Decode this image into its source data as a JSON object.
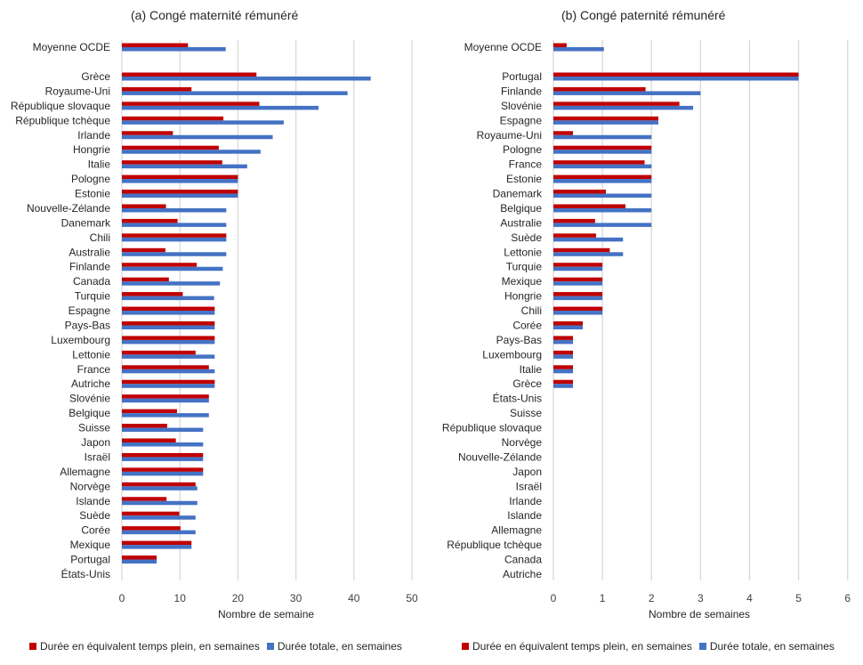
{
  "colors": {
    "fte": "#C00000",
    "total": "#4472C4",
    "grid": "#D9D9D9"
  },
  "chart_data": [
    {
      "type": "bar",
      "orientation": "horizontal",
      "title": "(a) Congé maternité rémunéré",
      "xlabel": "Nombre de semaine",
      "ylabel": "",
      "xlim": [
        0,
        50
      ],
      "xticks": [
        0,
        10,
        20,
        30,
        40,
        50
      ],
      "grid": true,
      "legend_position": "bottom",
      "categories": [
        "Moyenne OCDE",
        "",
        "Grèce",
        "Royaume-Uni",
        "République slovaque",
        "République tchèque",
        "Irlande",
        "Hongrie",
        "Italie",
        "Pologne",
        "Estonie",
        "Nouvelle-Zélande",
        "Danemark",
        "Chili",
        "Australie",
        "Finlande",
        "Canada",
        "Turquie",
        "Espagne",
        "Pays-Bas",
        "Luxembourg",
        "Lettonie",
        "France",
        "Autriche",
        "Slovénie",
        "Belgique",
        "Suisse",
        "Japon",
        "Israël",
        "Allemagne",
        "Norvège",
        "Islande",
        "Suède",
        "Corée",
        "Mexique",
        "Portugal",
        "États-Unis"
      ],
      "series": [
        {
          "name": "Durée en équivalent temps plein, en semaines",
          "color": "#C00000",
          "values": [
            11.4,
            null,
            23.2,
            12.0,
            23.7,
            17.5,
            8.8,
            16.7,
            17.3,
            20,
            20,
            7.6,
            9.6,
            18,
            7.5,
            12.9,
            8.1,
            10.5,
            16,
            16,
            16,
            12.7,
            15.0,
            16,
            15,
            9.5,
            7.8,
            9.3,
            14,
            14,
            12.7,
            7.7,
            9.9,
            10.1,
            12,
            6,
            0
          ]
        },
        {
          "name": "Durée totale, en semaines",
          "color": "#4472C4",
          "values": [
            17.9,
            null,
            42.9,
            38.9,
            33.9,
            27.9,
            26.0,
            23.9,
            21.6,
            20,
            20,
            18,
            18,
            18,
            18,
            17.4,
            16.9,
            15.9,
            16,
            16,
            16,
            16,
            16,
            16,
            15,
            15,
            14,
            14,
            14,
            14,
            13,
            13,
            12.7,
            12.7,
            12,
            6,
            0
          ]
        }
      ]
    },
    {
      "type": "bar",
      "orientation": "horizontal",
      "title": "(b) Congé paternité rémunéré",
      "xlabel": "Nombre de semaines",
      "ylabel": "",
      "xlim": [
        0,
        6
      ],
      "xticks": [
        0,
        1,
        2,
        3,
        4,
        5,
        6
      ],
      "grid": true,
      "legend_position": "bottom",
      "categories": [
        "Moyenne OCDE",
        "",
        "Portugal",
        "Finlande",
        "Slovénie",
        "Espagne",
        "Royaume-Uni",
        "Pologne",
        "France",
        "Estonie",
        "Danemark",
        "Belgique",
        "Australie",
        "Suède",
        "Lettonie",
        "Turquie",
        "Mexique",
        "Hongrie",
        "Chili",
        "Corée",
        "Pays-Bas",
        "Luxembourg",
        "Italie",
        "Grèce",
        "États-Unis",
        "Suisse",
        "République slovaque",
        "Norvège",
        "Nouvelle-Zélande",
        "Japon",
        "Israël",
        "Irlande",
        "Islande",
        "Allemagne",
        "République tchèque",
        "Canada",
        "Autriche"
      ],
      "series": [
        {
          "name": "Durée en équivalent temps plein, en semaines",
          "color": "#C00000",
          "values": [
            0.27,
            null,
            5,
            1.88,
            2.57,
            2.14,
            0.4,
            2,
            1.86,
            2,
            1.07,
            1.47,
            0.85,
            0.87,
            1.15,
            1,
            1,
            1,
            1,
            0.6,
            0.4,
            0.4,
            0.4,
            0.4,
            0,
            0,
            0,
            0,
            0,
            0,
            0,
            0,
            0,
            0,
            0,
            0,
            0
          ]
        },
        {
          "name": "Durée totale, en semaines",
          "color": "#4472C4",
          "values": [
            1.03,
            null,
            5,
            3,
            2.85,
            2.14,
            2,
            2,
            2,
            2,
            2,
            2,
            2,
            1.42,
            1.42,
            1,
            1,
            1,
            1,
            0.6,
            0.4,
            0.4,
            0.4,
            0.4,
            0,
            0,
            0,
            0,
            0,
            0,
            0,
            0,
            0,
            0,
            0,
            0,
            0
          ]
        }
      ]
    }
  ]
}
